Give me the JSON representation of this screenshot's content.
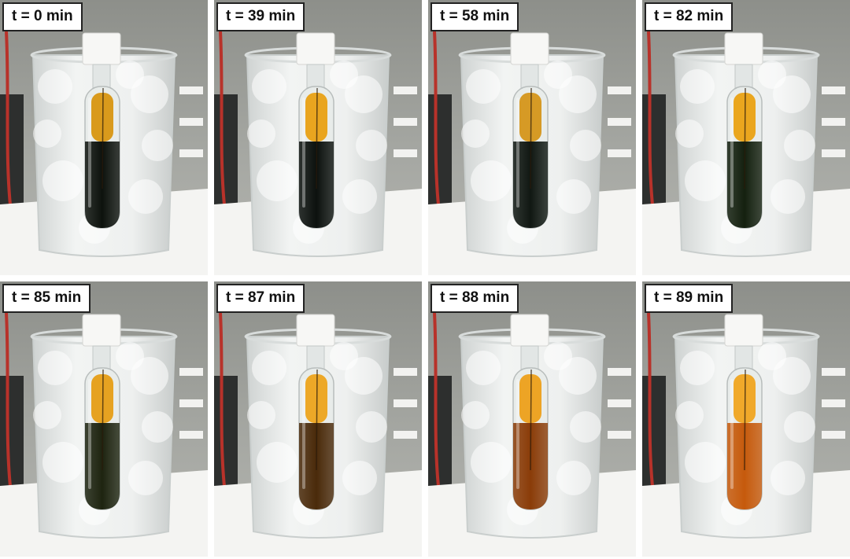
{
  "panels": [
    {
      "label": "t = 0 min",
      "top_color": "#d99a1c",
      "bottom_color": "#0d120d",
      "liquid_state": "dark"
    },
    {
      "label": "t = 39 min",
      "top_color": "#e9a51f",
      "bottom_color": "#0c110e",
      "liquid_state": "dark"
    },
    {
      "label": "t = 58 min",
      "top_color": "#d69a25",
      "bottom_color": "#101712",
      "liquid_state": "dark"
    },
    {
      "label": "t = 82 min",
      "top_color": "#eaa61e",
      "bottom_color": "#14200f",
      "liquid_state": "dark"
    },
    {
      "label": "t = 85 min",
      "top_color": "#e6a221",
      "bottom_color": "#1e2410",
      "liquid_state": "dark-green"
    },
    {
      "label": "t = 87 min",
      "top_color": "#eda827",
      "bottom_color": "#4a2a0a",
      "liquid_state": "brown"
    },
    {
      "label": "t = 88 min",
      "top_color": "#eda425",
      "bottom_color": "#8a3c08",
      "liquid_state": "amber-brown"
    },
    {
      "label": "t = 89 min",
      "top_color": "#f0a92a",
      "bottom_color": "#c65a0c",
      "liquid_state": "orange"
    }
  ]
}
